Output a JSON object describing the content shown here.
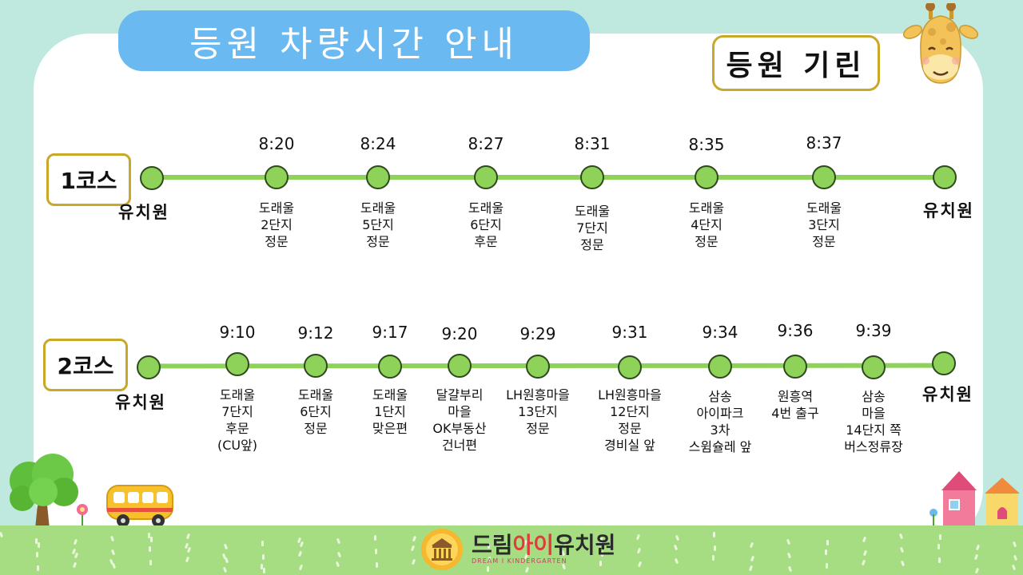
{
  "header": {
    "title": "등원 차량시간 안내",
    "subtitle": "등원 기린"
  },
  "course1": {
    "label": "1코스",
    "stops": [
      {
        "time": "",
        "name": "유치원"
      },
      {
        "time": "8:20",
        "name": "도래울\n2단지\n정문"
      },
      {
        "time": "8:24",
        "name": "도래울\n5단지\n정문"
      },
      {
        "time": "8:27",
        "name": "도래울\n6단지\n후문"
      },
      {
        "time": "8:31",
        "name": "도래울\n7단지\n정문"
      },
      {
        "time": "8:35",
        "name": "도래울\n4단지\n정문"
      },
      {
        "time": "8:37",
        "name": "도래울\n3단지\n정문"
      },
      {
        "time": "",
        "name": "유치원"
      }
    ]
  },
  "course2": {
    "label": "2코스",
    "stops": [
      {
        "time": "",
        "name": "유치원"
      },
      {
        "time": "9:10",
        "name": "도래울\n7단지\n후문\n(CU앞)"
      },
      {
        "time": "9:12",
        "name": "도래울\n6단지\n정문"
      },
      {
        "time": "9:17",
        "name": "도래울\n1단지\n맞은편"
      },
      {
        "time": "9:20",
        "name": "달걀부리\n마을\nOK부동산\n건너편"
      },
      {
        "time": "9:29",
        "name": "LH원흥마을\n13단지\n정문"
      },
      {
        "time": "9:31",
        "name": "LH원흥마을\n12단지\n정문\n경비실 앞"
      },
      {
        "time": "9:34",
        "name": "삼송\n아이파크\n3차\n스윔슐레 앞"
      },
      {
        "time": "9:36",
        "name": "원흥역\n4번 출구"
      },
      {
        "time": "9:39",
        "name": "삼송\n마을\n14단지 쪽\n버스정류장"
      },
      {
        "time": "",
        "name": "유치원"
      }
    ]
  },
  "footer": {
    "name_part1": "드림",
    "name_part2": "아이",
    "name_part3": "유치원",
    "english": "DREAM I KINDERGARTEN"
  },
  "colors": {
    "background": "#bfe9df",
    "title_pill": "#6ab9f0",
    "route_line": "#8ed25a",
    "box_border": "#c8a828",
    "grass": "#a7dd82"
  }
}
